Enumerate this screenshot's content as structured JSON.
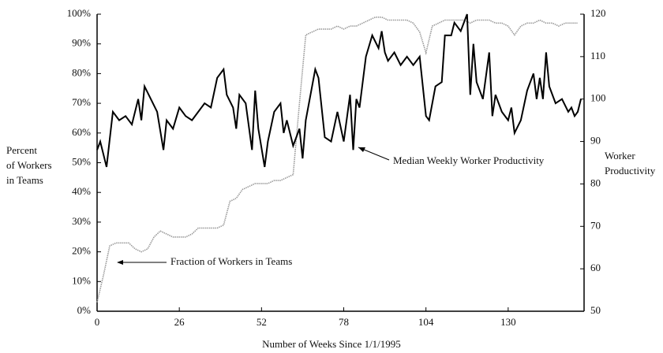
{
  "chart_data": {
    "type": "line",
    "xlabel": "Number of Weeks Since 1/1/1995",
    "ylabel": [
      "Percent",
      "of Workers",
      "in Teams"
    ],
    "y2label": [
      "Worker",
      "Productivity"
    ],
    "xlim": [
      0,
      154
    ],
    "xticks": [
      0,
      26,
      52,
      78,
      104,
      130
    ],
    "ylim": [
      0,
      100
    ],
    "yticks": [
      {
        "value": 0,
        "label": "0%"
      },
      {
        "value": 10,
        "label": "10%"
      },
      {
        "value": 20,
        "label": "20%"
      },
      {
        "value": 30,
        "label": "30%"
      },
      {
        "value": 40,
        "label": "40%"
      },
      {
        "value": 50,
        "label": "50%"
      },
      {
        "value": 60,
        "label": "60%"
      },
      {
        "value": 70,
        "label": "70%"
      },
      {
        "value": 80,
        "label": "80%"
      },
      {
        "value": 90,
        "label": "90%"
      },
      {
        "value": 100,
        "label": "100%"
      }
    ],
    "y2lim": [
      50,
      120
    ],
    "y2ticks": [
      50,
      60,
      70,
      80,
      90,
      100,
      110,
      120
    ],
    "annotations": [
      {
        "text": "Median Weekly Worker Productivity"
      },
      {
        "text": "Fraction of Workers in Teams"
      }
    ],
    "series": [
      {
        "name": "Fraction of Workers in Teams",
        "color": "#9a9a9a",
        "axis": "y",
        "x": [
          0,
          2,
          4,
          6,
          8,
          10,
          12,
          14,
          16,
          18,
          20,
          22,
          24,
          26,
          28,
          30,
          32,
          34,
          36,
          38,
          40,
          42,
          44,
          46,
          48,
          50,
          52,
          54,
          56,
          58,
          60,
          62,
          64,
          66,
          68,
          70,
          72,
          74,
          76,
          78,
          80,
          82,
          84,
          86,
          88,
          90,
          92,
          94,
          96,
          98,
          100,
          102,
          104,
          106,
          108,
          110,
          112,
          114,
          116,
          118,
          120,
          122,
          124,
          126,
          128,
          130,
          132,
          134,
          136,
          138,
          140,
          142,
          144,
          146,
          148,
          150,
          152
        ],
        "values": [
          3,
          12,
          22,
          23,
          23,
          23,
          21,
          20,
          21,
          25,
          27,
          26,
          25,
          25,
          25,
          26,
          28,
          28,
          28,
          28,
          29,
          37,
          38,
          41,
          42,
          43,
          43,
          43,
          44,
          44,
          45,
          46,
          70,
          93,
          94,
          95,
          95,
          95,
          96,
          95,
          96,
          96,
          97,
          98,
          99,
          99,
          98,
          98,
          98,
          98,
          97,
          94,
          87,
          96,
          97,
          98,
          98,
          98,
          98,
          97,
          98,
          98,
          98,
          97,
          97,
          96,
          93,
          96,
          97,
          97,
          98,
          97,
          97,
          96,
          97,
          97,
          97
        ]
      },
      {
        "name": "Median Weekly Worker Productivity",
        "color": "#000000",
        "axis": "y2",
        "x": [
          0,
          1,
          3,
          5,
          7,
          9,
          11,
          13,
          14,
          15,
          17,
          19,
          21,
          22,
          24,
          26,
          28,
          30,
          32,
          34,
          36,
          38,
          40,
          41,
          43,
          44,
          45,
          47,
          49,
          50,
          51,
          53,
          54,
          56,
          58,
          59,
          60,
          62,
          64,
          65,
          66,
          68,
          69,
          70,
          72,
          74,
          76,
          78,
          80,
          81,
          82,
          83,
          85,
          87,
          89,
          90,
          91,
          92,
          94,
          96,
          98,
          100,
          102,
          104,
          105,
          107,
          109,
          110,
          112,
          113,
          115,
          117,
          118,
          119,
          120,
          122,
          124,
          125,
          126,
          128,
          130,
          131,
          132,
          134,
          136,
          138,
          139,
          140,
          141,
          142,
          143,
          145,
          147,
          149,
          150,
          151,
          152,
          153
        ],
        "values": [
          88,
          90,
          84,
          97,
          95,
          96,
          94,
          100,
          95,
          103,
          100,
          97,
          88,
          95,
          93,
          98,
          96,
          95,
          97,
          99,
          98,
          105,
          107,
          101,
          98,
          93,
          101,
          99,
          88,
          102,
          93,
          84,
          90,
          97,
          99,
          92,
          95,
          89,
          93,
          86,
          95,
          103,
          107,
          105,
          91,
          90,
          97,
          90,
          101,
          88,
          100,
          98,
          110,
          115,
          112,
          116,
          111,
          109,
          111,
          108,
          110,
          108,
          110,
          96,
          95,
          103,
          104,
          115,
          115,
          118,
          116,
          120,
          101,
          113,
          104,
          100,
          111,
          96,
          101,
          97,
          95,
          98,
          92,
          95,
          102,
          106,
          100,
          105,
          100,
          111,
          103,
          99,
          100,
          97,
          98,
          96,
          97,
          100
        ]
      }
    ]
  }
}
